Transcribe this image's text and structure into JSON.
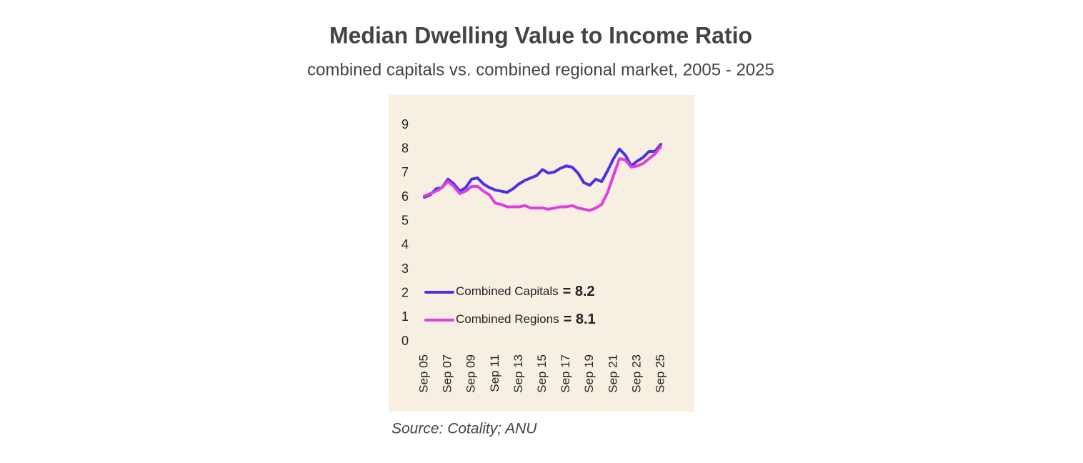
{
  "chart_data": {
    "type": "line",
    "title": "Median Dwelling Value to Income Ratio",
    "subtitle": "combined capitals vs. combined regional market, 2005 - 2025",
    "source": "Source: Cotality; ANU",
    "categories": [
      "Sep 05",
      null,
      null,
      null,
      "Sep 07",
      null,
      null,
      null,
      "Sep 09",
      null,
      null,
      null,
      "Sep 11",
      null,
      null,
      null,
      "Sep 13",
      null,
      null,
      null,
      "Sep 15",
      null,
      null,
      null,
      "Sep 17",
      null,
      null,
      null,
      "Sep 19",
      null,
      null,
      null,
      "Sep 21",
      null,
      null,
      null,
      "Sep 23",
      null,
      null,
      null,
      "Sep 25"
    ],
    "series": [
      {
        "name": "Combined Capitals",
        "color": "#4b32e0",
        "values": [
          6.0,
          6.1,
          6.35,
          6.4,
          6.75,
          6.55,
          6.25,
          6.4,
          6.75,
          6.8,
          6.55,
          6.4,
          6.3,
          6.25,
          6.2,
          6.35,
          6.55,
          6.7,
          6.8,
          6.9,
          7.15,
          7.0,
          7.05,
          7.2,
          7.3,
          7.25,
          7.0,
          6.6,
          6.5,
          6.75,
          6.65,
          7.1,
          7.6,
          8.0,
          7.75,
          7.3,
          7.5,
          7.65,
          7.9,
          7.9,
          8.2
        ]
      },
      {
        "name": "Combined Regions",
        "color": "#e03fdc",
        "values": [
          6.05,
          6.15,
          6.25,
          6.4,
          6.65,
          6.45,
          6.15,
          6.25,
          6.45,
          6.45,
          6.25,
          6.1,
          5.75,
          5.7,
          5.6,
          5.6,
          5.6,
          5.65,
          5.55,
          5.55,
          5.55,
          5.5,
          5.55,
          5.6,
          5.6,
          5.65,
          5.55,
          5.5,
          5.45,
          5.55,
          5.7,
          6.2,
          6.9,
          7.6,
          7.55,
          7.25,
          7.3,
          7.4,
          7.6,
          7.8,
          8.1
        ]
      }
    ],
    "legend_labels": [
      "= 8.2",
      "= 8.1"
    ],
    "ylim": [
      0,
      9
    ],
    "yticks": [
      0,
      1,
      2,
      3,
      4,
      5,
      6,
      7,
      8,
      9
    ]
  }
}
